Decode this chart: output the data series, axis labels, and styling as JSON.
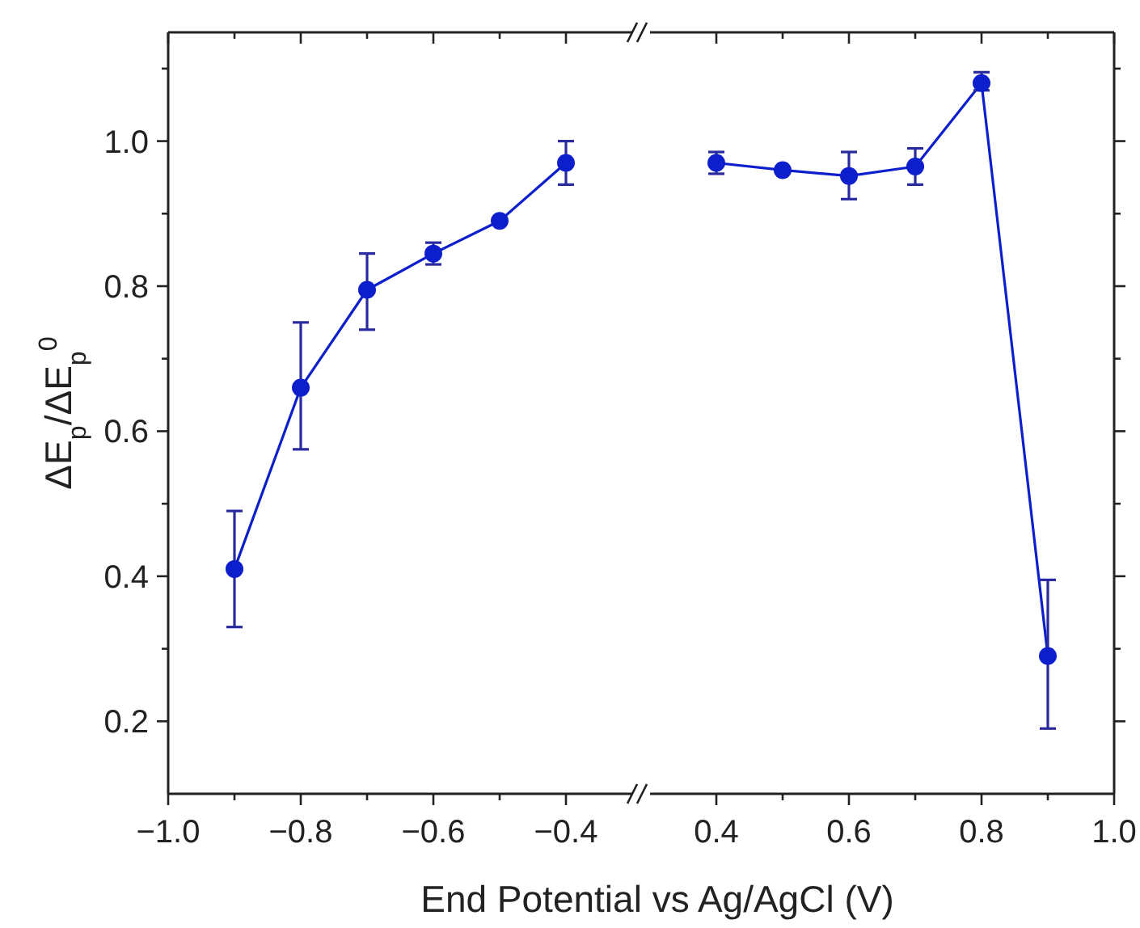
{
  "chart_data": [
    {
      "type": "line",
      "xlabel": "End Potential vs Ag/AgCl (V)",
      "ylabel": "ΔE$_{p}$/ΔE$_{p}$$^{0}$",
      "x": [
        -0.9,
        -0.8,
        -0.7,
        -0.6,
        -0.5,
        -0.4
      ],
      "series": [
        {
          "color": "#0d1fcc",
          "values": [
            0.41,
            0.66,
            0.795,
            0.845,
            0.89,
            0.97
          ],
          "errors": [
            [
              0.33,
              0.49
            ],
            [
              0.575,
              0.75
            ],
            [
              0.74,
              0.845
            ],
            [
              0.83,
              0.86
            ],
            null,
            [
              0.94,
              1.0
            ]
          ]
        }
      ],
      "xlim": [
        -1.0,
        -0.3
      ],
      "xticks": [
        {
          "value": -1.0,
          "label": "−1.0"
        },
        {
          "value": -0.9,
          "label": null
        },
        -0.8,
        {
          "value": -0.7,
          "label": null
        },
        -0.6,
        {
          "value": -0.5,
          "label": null
        },
        -0.4
      ],
      "ylim": [
        0.1,
        1.15
      ],
      "yticks": [
        0.2,
        {
          "value": 0.3,
          "label": null
        },
        0.4,
        {
          "value": 0.5,
          "label": null
        },
        0.6,
        {
          "value": 0.7,
          "label": null
        },
        0.8,
        {
          "value": 0.9,
          "label": null
        },
        {
          "value": 1.0,
          "label": "1.0"
        },
        {
          "value": 1.1,
          "label": null
        }
      ],
      "marker": "circle",
      "line_style": "solid",
      "grid": false
    },
    {
      "type": "line",
      "x": [
        0.4,
        0.5,
        0.6,
        0.7,
        0.8,
        0.9
      ],
      "series": [
        {
          "color": "#0d1fcc",
          "values": [
            0.97,
            0.96,
            0.952,
            0.965,
            1.08,
            0.29
          ],
          "errors": [
            [
              0.955,
              0.985
            ],
            null,
            [
              0.92,
              0.985
            ],
            [
              0.94,
              0.99
            ],
            [
              1.07,
              1.095
            ],
            [
              0.19,
              0.395
            ]
          ]
        }
      ],
      "xlim": [
        0.3,
        1.0
      ],
      "xticks": [
        0.4,
        {
          "value": 0.5,
          "label": null
        },
        0.6,
        {
          "value": 0.7,
          "label": null
        },
        0.8,
        {
          "value": 0.9,
          "label": null
        },
        {
          "value": 1.0,
          "label": "1.0"
        }
      ],
      "ylim": [
        0.1,
        1.15
      ],
      "yticks": [
        0.2,
        {
          "value": 0.3,
          "label": null
        },
        0.4,
        {
          "value": 0.5,
          "label": null
        },
        0.6,
        {
          "value": 0.7,
          "label": null
        },
        0.8,
        {
          "value": 0.9,
          "label": null
        },
        1.0,
        {
          "value": 1.1,
          "label": null
        }
      ],
      "tick_labels": "x",
      "marker": "circle",
      "line_style": "solid",
      "grid": false
    }
  ]
}
